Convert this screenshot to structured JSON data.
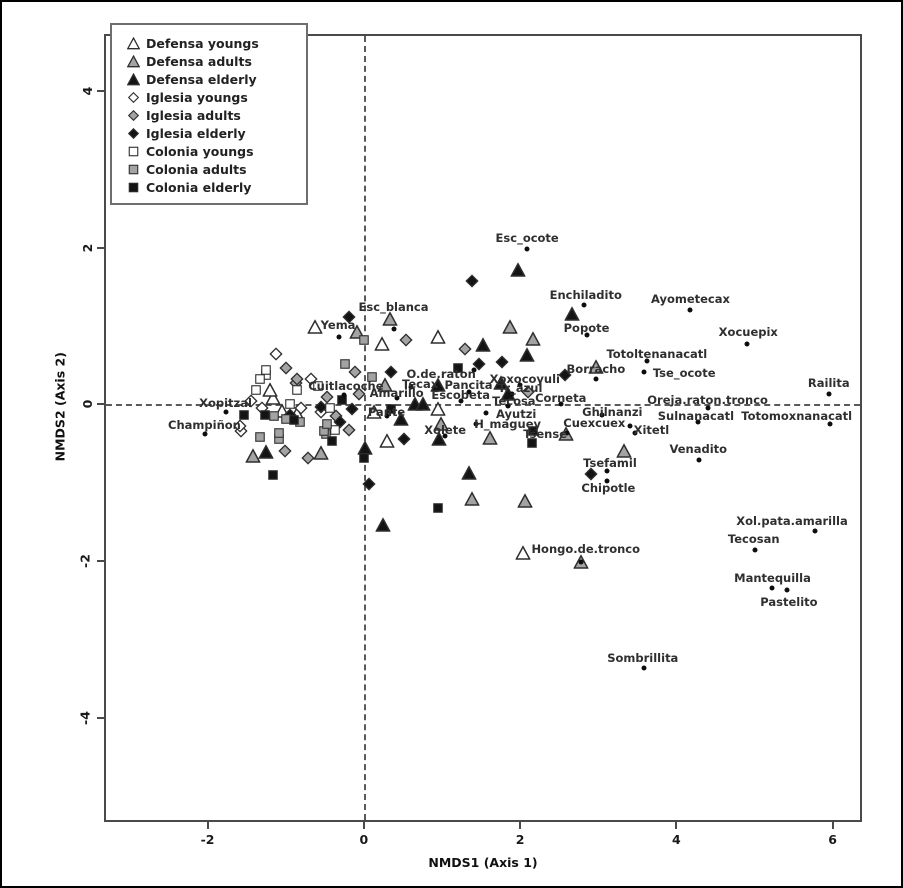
{
  "chart_data": {
    "type": "scatter",
    "title": "",
    "xlabel": "NMDS1 (Axis 1)",
    "ylabel": "NMDS2 (Axis 2)",
    "xlim": [
      -3.3,
      6.35
    ],
    "ylim": [
      -5.3,
      4.7
    ],
    "xticks": [
      -2,
      0,
      2,
      4,
      6
    ],
    "yticks": [
      -4,
      -2,
      0,
      2,
      4
    ],
    "grid": false,
    "reference_lines": {
      "vertical_at_x": 0,
      "horizontal_at_y": 0,
      "style": "dashed"
    },
    "legend_position": "top-left",
    "colors": {
      "open_fill": "#ffffff",
      "adults_fill": "#a3a3a3",
      "elderly_fill": "#141414",
      "stroke": "#2e2e2e"
    },
    "groups": [
      {
        "id": "defensa_youngs",
        "label": "Defensa youngs",
        "shape": "triangle",
        "fill": "#ffffff"
      },
      {
        "id": "defensa_adults",
        "label": "Defensa adults",
        "shape": "triangle",
        "fill": "#a3a3a3"
      },
      {
        "id": "defensa_elderly",
        "label": "Defensa elderly",
        "shape": "triangle",
        "fill": "#141414"
      },
      {
        "id": "iglesia_youngs",
        "label": "Iglesia youngs",
        "shape": "diamond",
        "fill": "#ffffff"
      },
      {
        "id": "iglesia_adults",
        "label": "Iglesia adults",
        "shape": "diamond",
        "fill": "#a3a3a3"
      },
      {
        "id": "iglesia_elderly",
        "label": "Iglesia elderly",
        "shape": "diamond",
        "fill": "#141414"
      },
      {
        "id": "colonia_youngs",
        "label": "Colonia youngs",
        "shape": "square",
        "fill": "#ffffff"
      },
      {
        "id": "colonia_adults",
        "label": "Colonia adults",
        "shape": "square",
        "fill": "#a3a3a3"
      },
      {
        "id": "colonia_elderly",
        "label": "Colonia elderly",
        "shape": "square",
        "fill": "#141414"
      }
    ],
    "samples": [
      {
        "g": "defensa_youngs",
        "x": -0.63,
        "y": 0.99
      },
      {
        "g": "defensa_youngs",
        "x": 0.23,
        "y": 0.77
      },
      {
        "g": "defensa_youngs",
        "x": 0.95,
        "y": 0.86
      },
      {
        "g": "defensa_youngs",
        "x": -1.16,
        "y": 0.08
      },
      {
        "g": "defensa_youngs",
        "x": -1.2,
        "y": 0.19
      },
      {
        "g": "defensa_youngs",
        "x": -1.05,
        "y": -0.08
      },
      {
        "g": "defensa_youngs",
        "x": 0.13,
        "y": -0.09
      },
      {
        "g": "defensa_youngs",
        "x": 0.95,
        "y": -0.06
      },
      {
        "g": "defensa_youngs",
        "x": 0.29,
        "y": -0.47
      },
      {
        "g": "defensa_youngs",
        "x": 2.04,
        "y": -1.9
      },
      {
        "g": "defensa_youngs",
        "x": -0.85,
        "y": -0.12
      },
      {
        "g": "defensa_adults",
        "x": -0.09,
        "y": 0.92
      },
      {
        "g": "defensa_adults",
        "x": 0.33,
        "y": 1.09
      },
      {
        "g": "defensa_adults",
        "x": 1.87,
        "y": 0.99
      },
      {
        "g": "defensa_adults",
        "x": 2.16,
        "y": 0.84
      },
      {
        "g": "defensa_adults",
        "x": 2.97,
        "y": 0.48
      },
      {
        "g": "defensa_adults",
        "x": 0.27,
        "y": 0.25
      },
      {
        "g": "defensa_adults",
        "x": 1.62,
        "y": -0.43
      },
      {
        "g": "defensa_adults",
        "x": 0.99,
        "y": -0.25
      },
      {
        "g": "defensa_adults",
        "x": 2.59,
        "y": -0.38
      },
      {
        "g": "defensa_adults",
        "x": 3.33,
        "y": -0.59
      },
      {
        "g": "defensa_adults",
        "x": 1.39,
        "y": -1.2
      },
      {
        "g": "defensa_adults",
        "x": 2.06,
        "y": -1.23
      },
      {
        "g": "defensa_adults",
        "x": 2.78,
        "y": -2.01
      },
      {
        "g": "defensa_adults",
        "x": -1.42,
        "y": -0.66
      },
      {
        "g": "defensa_adults",
        "x": -0.55,
        "y": -0.62
      },
      {
        "g": "defensa_elderly",
        "x": 1.97,
        "y": 1.71
      },
      {
        "g": "defensa_elderly",
        "x": 2.66,
        "y": 1.15
      },
      {
        "g": "defensa_elderly",
        "x": 1.52,
        "y": 0.76
      },
      {
        "g": "defensa_elderly",
        "x": 2.09,
        "y": 0.63
      },
      {
        "g": "defensa_elderly",
        "x": 1.75,
        "y": 0.27
      },
      {
        "g": "defensa_elderly",
        "x": 1.84,
        "y": 0.14
      },
      {
        "g": "defensa_elderly",
        "x": 0.95,
        "y": 0.25
      },
      {
        "g": "defensa_elderly",
        "x": 0.65,
        "y": 0.01
      },
      {
        "g": "defensa_elderly",
        "x": 0.76,
        "y": 0.0
      },
      {
        "g": "defensa_elderly",
        "x": 0.48,
        "y": -0.19
      },
      {
        "g": "defensa_elderly",
        "x": 0.01,
        "y": -0.56
      },
      {
        "g": "defensa_elderly",
        "x": 0.96,
        "y": -0.44
      },
      {
        "g": "defensa_elderly",
        "x": 1.34,
        "y": -0.87
      },
      {
        "g": "defensa_elderly",
        "x": 0.25,
        "y": -1.54
      },
      {
        "g": "defensa_elderly",
        "x": -1.25,
        "y": -0.6
      },
      {
        "g": "iglesia_youngs",
        "x": -1.13,
        "y": 0.65
      },
      {
        "g": "iglesia_youngs",
        "x": -0.68,
        "y": 0.32
      },
      {
        "g": "iglesia_youngs",
        "x": -1.57,
        "y": -0.34
      },
      {
        "g": "iglesia_youngs",
        "x": -1.3,
        "y": -0.05
      },
      {
        "g": "iglesia_youngs",
        "x": -0.8,
        "y": -0.05
      },
      {
        "g": "iglesia_youngs",
        "x": -0.55,
        "y": -0.1
      },
      {
        "g": "iglesia_youngs",
        "x": -1.45,
        "y": 0.05
      },
      {
        "g": "iglesia_youngs",
        "x": -1.58,
        "y": -0.28
      },
      {
        "g": "iglesia_adults",
        "x": 0.54,
        "y": 0.82
      },
      {
        "g": "iglesia_adults",
        "x": 1.3,
        "y": 0.71
      },
      {
        "g": "iglesia_adults",
        "x": -1.0,
        "y": 0.46
      },
      {
        "g": "iglesia_adults",
        "x": -0.87,
        "y": 0.27
      },
      {
        "g": "iglesia_adults",
        "x": -0.85,
        "y": 0.32
      },
      {
        "g": "iglesia_adults",
        "x": -0.11,
        "y": 0.42
      },
      {
        "g": "iglesia_adults",
        "x": -0.06,
        "y": 0.13
      },
      {
        "g": "iglesia_adults",
        "x": -0.47,
        "y": 0.1
      },
      {
        "g": "iglesia_adults",
        "x": -0.35,
        "y": -0.15
      },
      {
        "g": "iglesia_adults",
        "x": -0.19,
        "y": -0.32
      },
      {
        "g": "iglesia_adults",
        "x": -1.01,
        "y": -0.59
      },
      {
        "g": "iglesia_adults",
        "x": -0.72,
        "y": -0.68
      },
      {
        "g": "iglesia_adults",
        "x": 2.1,
        "y": 0.16
      },
      {
        "g": "iglesia_elderly",
        "x": -0.19,
        "y": 1.11
      },
      {
        "g": "iglesia_elderly",
        "x": 1.39,
        "y": 1.58
      },
      {
        "g": "iglesia_elderly",
        "x": 1.47,
        "y": 0.51
      },
      {
        "g": "iglesia_elderly",
        "x": 1.77,
        "y": 0.54
      },
      {
        "g": "iglesia_elderly",
        "x": 2.57,
        "y": 0.38
      },
      {
        "g": "iglesia_elderly",
        "x": 0.35,
        "y": 0.42
      },
      {
        "g": "iglesia_elderly",
        "x": 0.51,
        "y": -0.44
      },
      {
        "g": "iglesia_elderly",
        "x": 0.06,
        "y": -1.01
      },
      {
        "g": "iglesia_elderly",
        "x": 2.91,
        "y": -0.89
      },
      {
        "g": "iglesia_elderly",
        "x": -0.15,
        "y": -0.06
      },
      {
        "g": "iglesia_elderly",
        "x": -0.55,
        "y": -0.03
      },
      {
        "g": "iglesia_elderly",
        "x": -0.95,
        "y": -0.13
      },
      {
        "g": "iglesia_elderly",
        "x": -0.3,
        "y": -0.22
      },
      {
        "g": "colonia_youngs",
        "x": -1.25,
        "y": 0.38
      },
      {
        "g": "colonia_youngs",
        "x": -1.33,
        "y": 0.32
      },
      {
        "g": "colonia_youngs",
        "x": -1.38,
        "y": 0.19
      },
      {
        "g": "colonia_youngs",
        "x": -1.25,
        "y": 0.44
      },
      {
        "g": "colonia_youngs",
        "x": -0.85,
        "y": 0.19
      },
      {
        "g": "colonia_youngs",
        "x": -0.59,
        "y": 0.23
      },
      {
        "g": "colonia_youngs",
        "x": -0.95,
        "y": 0.0
      },
      {
        "g": "colonia_youngs",
        "x": -0.37,
        "y": -0.32
      },
      {
        "g": "colonia_youngs",
        "x": -0.43,
        "y": -0.05
      },
      {
        "g": "colonia_adults",
        "x": 0.0,
        "y": 0.82
      },
      {
        "g": "colonia_adults",
        "x": -0.24,
        "y": 0.52
      },
      {
        "g": "colonia_adults",
        "x": 0.1,
        "y": 0.35
      },
      {
        "g": "colonia_adults",
        "x": -1.15,
        "y": -0.15
      },
      {
        "g": "colonia_adults",
        "x": -1.08,
        "y": -0.44
      },
      {
        "g": "colonia_adults",
        "x": -0.49,
        "y": -0.38
      },
      {
        "g": "colonia_adults",
        "x": -1.0,
        "y": -0.18
      },
      {
        "g": "colonia_adults",
        "x": -0.82,
        "y": -0.22
      },
      {
        "g": "colonia_adults",
        "x": -0.51,
        "y": -0.34
      },
      {
        "g": "colonia_adults",
        "x": -1.08,
        "y": -0.37
      },
      {
        "g": "colonia_adults",
        "x": -1.33,
        "y": -0.41
      },
      {
        "g": "colonia_adults",
        "x": -0.47,
        "y": -0.25
      },
      {
        "g": "colonia_elderly",
        "x": -1.54,
        "y": -0.13
      },
      {
        "g": "colonia_elderly",
        "x": -0.28,
        "y": 0.06
      },
      {
        "g": "colonia_elderly",
        "x": -0.41,
        "y": -0.47
      },
      {
        "g": "colonia_elderly",
        "x": 0.0,
        "y": -0.68
      },
      {
        "g": "colonia_elderly",
        "x": -1.16,
        "y": -0.9
      },
      {
        "g": "colonia_elderly",
        "x": 0.95,
        "y": -1.32
      },
      {
        "g": "colonia_elderly",
        "x": 2.15,
        "y": -0.49
      },
      {
        "g": "colonia_elderly",
        "x": 2.16,
        "y": -0.34
      },
      {
        "g": "colonia_elderly",
        "x": 1.2,
        "y": 0.47
      },
      {
        "g": "colonia_elderly",
        "x": -0.9,
        "y": -0.2
      },
      {
        "g": "colonia_elderly",
        "x": -1.27,
        "y": -0.13
      },
      {
        "g": "colonia_elderly",
        "x": 0.35,
        "y": -0.06
      }
    ],
    "species": [
      {
        "name": "Esc_ocote",
        "x": 2.09,
        "y": 1.98,
        "lx": 2.09,
        "ly": 2.12
      },
      {
        "name": "Esc_blanca",
        "x": 0.38,
        "y": 0.96,
        "lx": 0.38,
        "ly": 1.24
      },
      {
        "name": "Yema",
        "x": -0.32,
        "y": 0.86,
        "lx": -0.33,
        "ly": 1.01
      },
      {
        "name": "Enchiladito",
        "x": 2.82,
        "y": 1.27,
        "lx": 2.84,
        "ly": 1.4
      },
      {
        "name": "Popote",
        "x": 2.85,
        "y": 0.89,
        "lx": 2.85,
        "ly": 0.98
      },
      {
        "name": "Ayometecax",
        "x": 4.18,
        "y": 1.2,
        "lx": 4.18,
        "ly": 1.34
      },
      {
        "name": "Xocuepix",
        "x": 4.91,
        "y": 0.77,
        "lx": 4.92,
        "ly": 0.92
      },
      {
        "name": "Totoltenanacatl",
        "x": 3.62,
        "y": 0.56,
        "lx": 3.75,
        "ly": 0.64
      },
      {
        "name": "Tse_ocote",
        "x": 3.58,
        "y": 0.42,
        "lx": 4.1,
        "ly": 0.4
      },
      {
        "name": "Railita",
        "x": 5.95,
        "y": 0.13,
        "lx": 5.95,
        "ly": 0.28
      },
      {
        "name": "Oreja.raton.tronco",
        "x": 4.4,
        "y": -0.04,
        "lx": 4.4,
        "ly": 0.06
      },
      {
        "name": "Sulnanacatl",
        "x": 4.28,
        "y": -0.22,
        "lx": 4.25,
        "ly": -0.15
      },
      {
        "name": "Totomoxnanacatl",
        "x": 5.96,
        "y": -0.25,
        "lx": 5.54,
        "ly": -0.15
      },
      {
        "name": "Ghilnanzi",
        "x": 3.05,
        "y": -0.14,
        "lx": 3.18,
        "ly": -0.09
      },
      {
        "name": "Cuexcuex",
        "x": 3.41,
        "y": -0.28,
        "lx": 2.95,
        "ly": -0.24
      },
      {
        "name": "Xitetl",
        "x": 3.47,
        "y": -0.36,
        "lx": 3.68,
        "ly": -0.33
      },
      {
        "name": "Venadito",
        "x": 4.29,
        "y": -0.71,
        "lx": 4.28,
        "ly": -0.57
      },
      {
        "name": "Tsefamil",
        "x": 3.11,
        "y": -0.85,
        "lx": 3.15,
        "ly": -0.75
      },
      {
        "name": "Chipotle",
        "x": 3.11,
        "y": -0.97,
        "lx": 3.13,
        "ly": -1.06
      },
      {
        "name": "Hongo.de.tronco",
        "x": 2.78,
        "y": -2.01,
        "lx": 2.84,
        "ly": -1.84
      },
      {
        "name": "Xol.pata.amarilla",
        "x": 5.77,
        "y": -1.61,
        "lx": 5.48,
        "ly": -1.48
      },
      {
        "name": "Tecosan",
        "x": 5.0,
        "y": -1.86,
        "lx": 4.99,
        "ly": -1.71
      },
      {
        "name": "Mantequilla",
        "x": 5.23,
        "y": -2.34,
        "lx": 5.23,
        "ly": -2.21
      },
      {
        "name": "Pastelito",
        "x": 5.42,
        "y": -2.37,
        "lx": 5.44,
        "ly": -2.52
      },
      {
        "name": "Sombrillita",
        "x": 3.58,
        "y": -3.36,
        "lx": 3.57,
        "ly": -3.23
      },
      {
        "name": "Xopitzal",
        "x": -1.76,
        "y": -0.09,
        "lx": -1.77,
        "ly": 0.02
      },
      {
        "name": "Champiñon",
        "x": -2.03,
        "y": -0.38,
        "lx": -2.04,
        "ly": -0.26
      },
      {
        "name": "Cuitlacoche",
        "x": -0.25,
        "y": 0.12,
        "lx": -0.23,
        "ly": 0.23
      },
      {
        "name": "O.de.raton",
        "x": 1.41,
        "y": 0.44,
        "lx": 0.99,
        "ly": 0.39
      },
      {
        "name": "Tecax",
        "x": 0.6,
        "y": 0.22,
        "lx": 0.72,
        "ly": 0.26
      },
      {
        "name": "Pancita",
        "x": 1.34,
        "y": 0.16,
        "lx": 1.34,
        "ly": 0.25
      },
      {
        "name": "Xoxocoyuli",
        "x": 2.0,
        "y": 0.25,
        "lx": 2.06,
        "ly": 0.33
      },
      {
        "name": "Tr_azul",
        "x": 1.9,
        "y": 0.13,
        "lx": 2.0,
        "ly": 0.21
      },
      {
        "name": "Amarillo",
        "x": 0.42,
        "y": 0.08,
        "lx": 0.42,
        "ly": 0.15
      },
      {
        "name": "Escobeta",
        "x": 1.24,
        "y": 0.04,
        "lx": 1.24,
        "ly": 0.12
      },
      {
        "name": "Tecosa",
        "x": 1.85,
        "y": -0.02,
        "lx": 1.92,
        "ly": 0.05
      },
      {
        "name": "Corneta",
        "x": 2.52,
        "y": 0.0,
        "lx": 2.52,
        "ly": 0.08
      },
      {
        "name": "Pante",
        "x": 0.29,
        "y": -0.15,
        "lx": 0.29,
        "ly": -0.09
      },
      {
        "name": "Ayutzi",
        "x": 1.56,
        "y": -0.11,
        "lx": 1.95,
        "ly": -0.12
      },
      {
        "name": "H_maguey",
        "x": 1.43,
        "y": -0.25,
        "lx": 1.84,
        "ly": -0.25
      },
      {
        "name": "Xolete",
        "x": 1.04,
        "y": -0.4,
        "lx": 1.04,
        "ly": -0.33
      },
      {
        "name": "Tsense",
        "x": 2.6,
        "y": -0.37,
        "lx": 2.32,
        "ly": -0.38
      },
      {
        "name": "Borracho",
        "x": 2.97,
        "y": 0.32,
        "lx": 2.97,
        "ly": 0.45
      }
    ]
  }
}
